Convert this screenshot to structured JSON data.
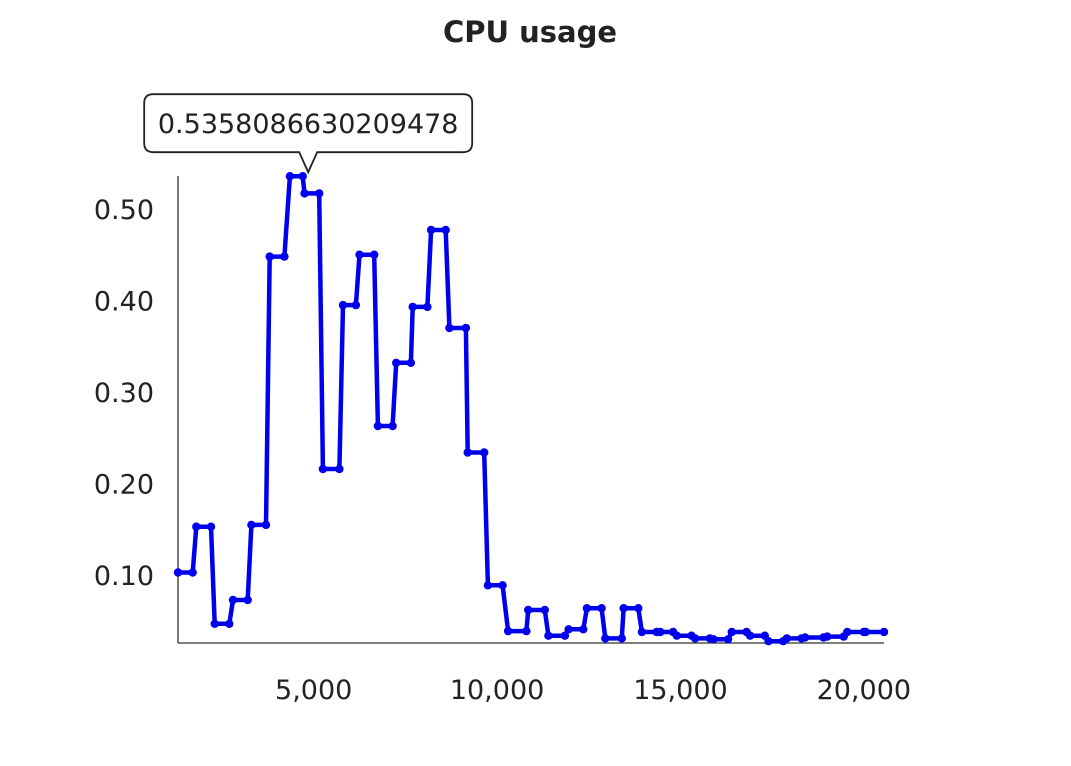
{
  "chart_data": {
    "type": "line",
    "title": "CPU usage",
    "xlabel": "",
    "ylabel": "",
    "xlim": [
      1300,
      20550
    ],
    "ylim": [
      0.026,
      0.536
    ],
    "x_ticks": [
      5000,
      10000,
      15000,
      20000
    ],
    "x_tick_labels": [
      "5,000",
      "10,000",
      "15,000",
      "20,000"
    ],
    "y_ticks": [
      0.1,
      0.2,
      0.3,
      0.4,
      0.5
    ],
    "y_tick_labels": [
      "0.10",
      "0.20",
      "0.30",
      "0.40",
      "0.50"
    ],
    "grid": false,
    "line_color": "#0000ee",
    "tooltip": {
      "text": "0.5358086630209478",
      "x": 4850,
      "y": 0.5358086630209478
    },
    "series": [
      {
        "x": [
          1300,
          1700,
          1800,
          2200,
          2300,
          2700,
          2800,
          3200,
          3300,
          3700,
          3800,
          4200,
          4350,
          4700,
          4750,
          5150,
          5250,
          5700,
          5800,
          6150,
          6250,
          6650,
          6750,
          7150,
          7250,
          7650,
          7700,
          8100,
          8200,
          8600,
          8700,
          9150,
          9200,
          9650,
          9750,
          10150,
          10300,
          10800,
          10850,
          11300,
          11400,
          11850,
          11950,
          12350,
          12450,
          12850,
          12950,
          13400,
          13450,
          13850,
          13950,
          14350,
          14450,
          14800,
          14900,
          15300,
          15400,
          15800,
          15900,
          16300,
          16400,
          16800,
          16900,
          17300,
          17400,
          17800,
          17900,
          18300,
          18400,
          18900,
          19000,
          19450,
          19550,
          20000,
          20050,
          20550
        ],
        "y": [
          0.103,
          0.103,
          0.153,
          0.153,
          0.047,
          0.047,
          0.073,
          0.073,
          0.155,
          0.155,
          0.448,
          0.448,
          0.5358086630209478,
          0.5358086630209478,
          0.517,
          0.517,
          0.216,
          0.216,
          0.395,
          0.395,
          0.45,
          0.45,
          0.263,
          0.263,
          0.332,
          0.332,
          0.393,
          0.393,
          0.477,
          0.477,
          0.37,
          0.37,
          0.234,
          0.234,
          0.089,
          0.089,
          0.039,
          0.039,
          0.062,
          0.062,
          0.034,
          0.034,
          0.041,
          0.041,
          0.064,
          0.064,
          0.031,
          0.031,
          0.064,
          0.064,
          0.038,
          0.038,
          0.038,
          0.038,
          0.034,
          0.034,
          0.031,
          0.031,
          0.03,
          0.03,
          0.038,
          0.038,
          0.034,
          0.034,
          0.028,
          0.028,
          0.031,
          0.031,
          0.032,
          0.032,
          0.033,
          0.033,
          0.038,
          0.038,
          0.038,
          0.038
        ]
      }
    ]
  }
}
